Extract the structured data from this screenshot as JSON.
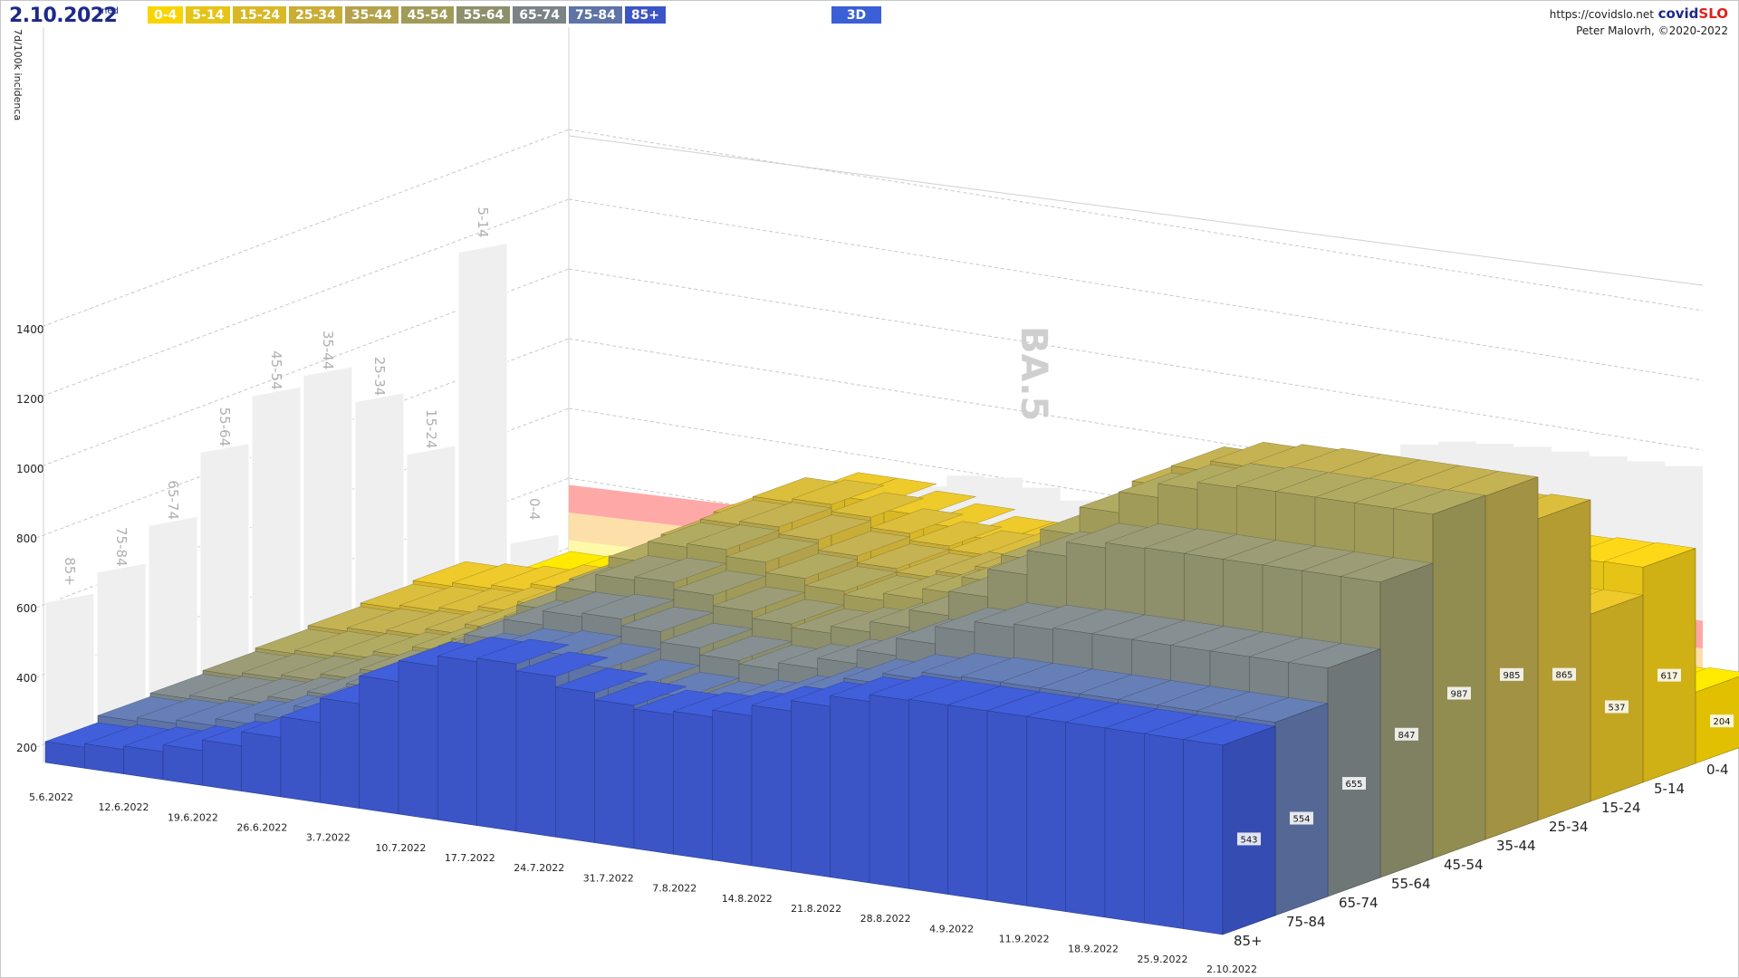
{
  "header": {
    "date": "2.10.2022",
    "weekday": "ned",
    "button_3d": "3D",
    "url": "https://covidslo.net",
    "brand_part1": "covid",
    "brand_part2": "SLO",
    "author": "Peter Malovrh, ©2020-2022",
    "y_axis_label": "7d/100k incidenca"
  },
  "annotation": "BA.5",
  "colors": {
    "0-4": "#f9d500",
    "5-14": "#e6c417",
    "15-24": "#d8b826",
    "25-34": "#c8ad37",
    "35-44": "#b3a24b",
    "45-54": "#a19b59",
    "55-64": "#8e8f6b",
    "65-74": "#7a8385",
    "75-84": "#5e73a6",
    "85+": "#3b55c7"
  },
  "chart_data": {
    "type": "bar",
    "variant": "3d-stacked-depth",
    "title": "7d/100k incidenca",
    "ylabel": "7d/100k incidenca",
    "y_ticks": [
      200,
      400,
      600,
      800,
      1000,
      1200,
      1400
    ],
    "ylim": [
      0,
      1500
    ],
    "x_tick_labels": [
      "5.6.2022",
      "12.6.2022",
      "19.6.2022",
      "26.6.2022",
      "3.7.2022",
      "10.7.2022",
      "17.7.2022",
      "24.7.2022",
      "31.7.2022",
      "7.8.2022",
      "14.8.2022",
      "21.8.2022",
      "28.8.2022",
      "4.9.2022",
      "11.9.2022",
      "18.9.2022",
      "25.9.2022",
      "2.10.2022"
    ],
    "age_groups": [
      "0-4",
      "5-14",
      "15-24",
      "25-34",
      "35-44",
      "45-54",
      "55-64",
      "65-74",
      "75-84",
      "85+"
    ],
    "series": [
      {
        "name": "0-4",
        "values": [
          60,
          65,
          70,
          80,
          95,
          110,
          140,
          180,
          230,
          280,
          300,
          290,
          260,
          230,
          215,
          205,
          200,
          200,
          205,
          210,
          205,
          200,
          200,
          195,
          190,
          185,
          190,
          195,
          200,
          204
        ]
      },
      {
        "name": "5-14",
        "values": [
          50,
          55,
          60,
          70,
          80,
          95,
          120,
          150,
          190,
          230,
          260,
          260,
          240,
          220,
          200,
          210,
          260,
          340,
          420,
          500,
          560,
          620,
          640,
          640,
          630,
          620,
          615,
          610,
          615,
          617
        ]
      },
      {
        "name": "15-24",
        "values": [
          140,
          150,
          160,
          180,
          210,
          250,
          310,
          380,
          450,
          520,
          560,
          560,
          540,
          520,
          500,
          500,
          510,
          540,
          560,
          560,
          550,
          540,
          535,
          530,
          530,
          535,
          540,
          535,
          535,
          537
        ]
      },
      {
        "name": "25-34",
        "values": [
          130,
          140,
          150,
          170,
          200,
          240,
          300,
          380,
          460,
          540,
          600,
          610,
          590,
          560,
          540,
          530,
          540,
          560,
          600,
          680,
          760,
          820,
          850,
          860,
          860,
          860,
          865,
          860,
          860,
          865
        ]
      },
      {
        "name": "35-44",
        "values": [
          120,
          130,
          140,
          160,
          190,
          230,
          290,
          370,
          450,
          530,
          590,
          600,
          580,
          550,
          530,
          520,
          540,
          570,
          620,
          700,
          800,
          880,
          940,
          970,
          980,
          985,
          985,
          985,
          985,
          985
        ]
      },
      {
        "name": "45-54",
        "values": [
          110,
          120,
          130,
          150,
          180,
          220,
          280,
          360,
          440,
          520,
          580,
          590,
          570,
          540,
          520,
          510,
          530,
          560,
          610,
          690,
          780,
          860,
          920,
          960,
          980,
          987,
          987,
          987,
          987,
          987
        ]
      },
      {
        "name": "55-64",
        "values": [
          100,
          110,
          120,
          140,
          170,
          210,
          270,
          340,
          420,
          490,
          540,
          550,
          530,
          500,
          480,
          470,
          490,
          520,
          570,
          640,
          720,
          790,
          830,
          845,
          847,
          847,
          847,
          847,
          847,
          847
        ]
      },
      {
        "name": "65-74",
        "values": [
          90,
          100,
          110,
          130,
          160,
          200,
          260,
          320,
          390,
          450,
          490,
          500,
          480,
          450,
          430,
          420,
          440,
          470,
          510,
          560,
          610,
          640,
          650,
          655,
          655,
          655,
          655,
          655,
          655,
          655
        ]
      },
      {
        "name": "75-84",
        "values": [
          80,
          90,
          100,
          120,
          150,
          190,
          240,
          300,
          360,
          410,
          440,
          450,
          430,
          400,
          380,
          370,
          390,
          420,
          460,
          500,
          530,
          550,
          554,
          554,
          554,
          554,
          554,
          554,
          554,
          554
        ]
      },
      {
        "name": "85+",
        "values": [
          60,
          70,
          80,
          100,
          130,
          170,
          230,
          300,
          380,
          440,
          470,
          480,
          460,
          430,
          410,
          400,
          410,
          430,
          460,
          490,
          520,
          540,
          543,
          543,
          543,
          543,
          543,
          543,
          543,
          543
        ]
      }
    ],
    "latest_values": [
      {
        "group": "0-4",
        "value": 204
      },
      {
        "group": "5-14",
        "value": 617
      },
      {
        "group": "15-24",
        "value": 537
      },
      {
        "group": "25-34",
        "value": 865
      },
      {
        "group": "35-44",
        "value": 985
      },
      {
        "group": "45-54",
        "value": 987
      },
      {
        "group": "55-64",
        "value": 847
      },
      {
        "group": "65-74",
        "value": 655
      },
      {
        "group": "75-84",
        "value": 554
      },
      {
        "group": "85+",
        "value": 543
      }
    ],
    "side_panel_peaks": [
      {
        "group": "85+",
        "value": 620
      },
      {
        "group": "75-84",
        "value": 700
      },
      {
        "group": "65-74",
        "value": 830
      },
      {
        "group": "55-64",
        "value": 1040
      },
      {
        "group": "45-54",
        "value": 1200
      },
      {
        "group": "35-44",
        "value": 1250
      },
      {
        "group": "25-34",
        "value": 1160
      },
      {
        "group": "15-24",
        "value": 990
      },
      {
        "group": "5-14",
        "value": 1590
      },
      {
        "group": "0-4",
        "value": 700
      }
    ],
    "threshold_bands": [
      {
        "from": 600,
        "to": 680,
        "color": "#fffaa0"
      },
      {
        "from": 680,
        "to": 790,
        "color": "#fddca0"
      },
      {
        "from": 790,
        "to": 900,
        "color": "#ff9e9e"
      }
    ],
    "grid": true
  }
}
